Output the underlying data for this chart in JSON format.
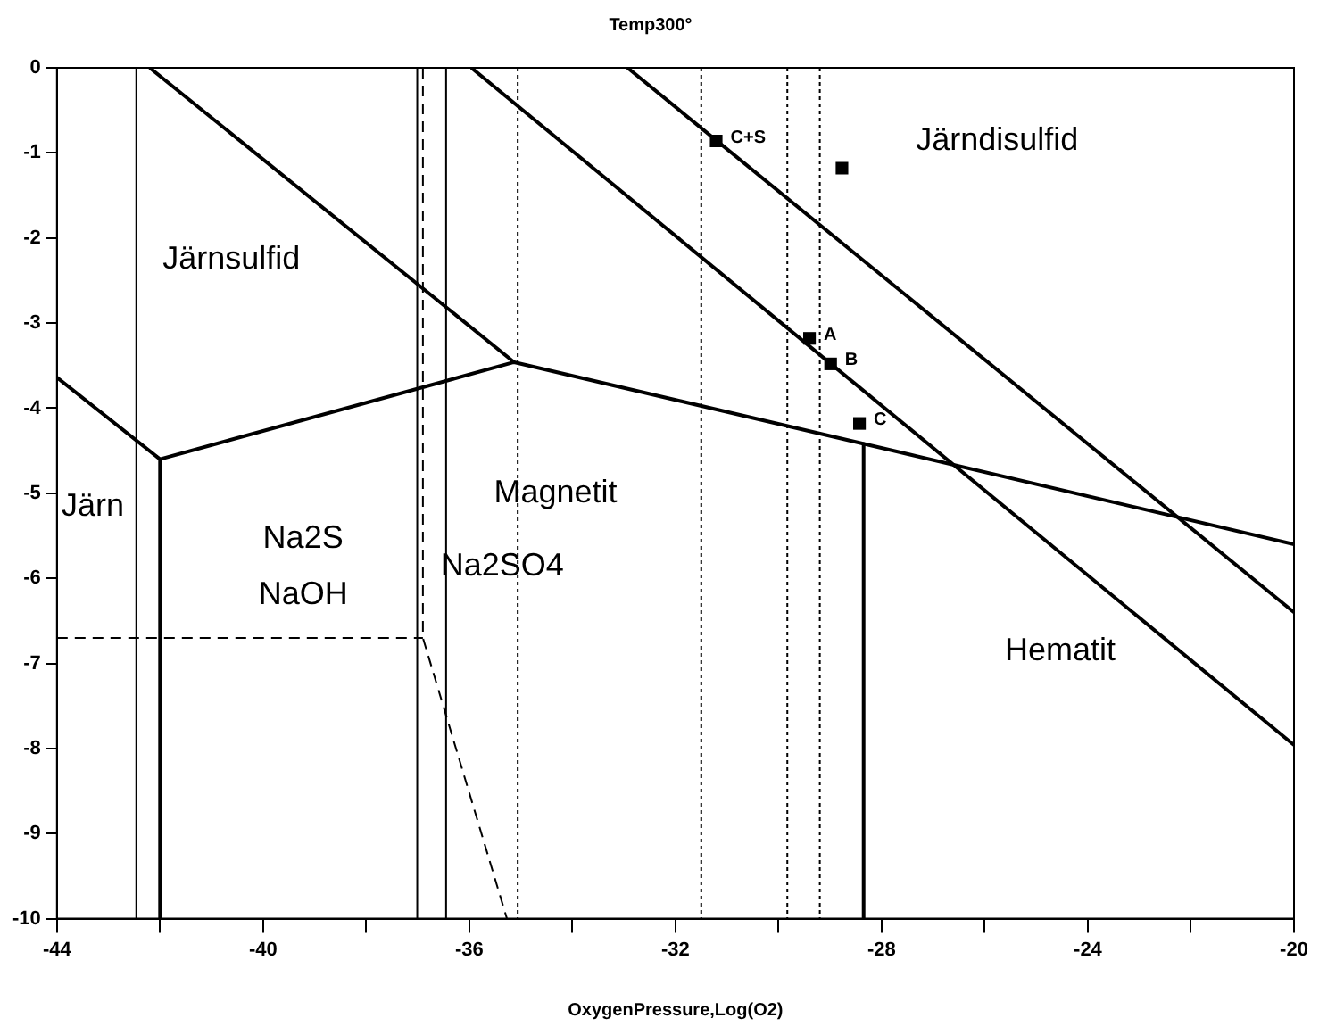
{
  "chart_data": {
    "type": "line",
    "title": "Temp300°",
    "xlabel": "OxygenPressure,Log(O2)",
    "xlim": [
      -44,
      -20
    ],
    "xticks": [
      -44,
      {
        "value": -42,
        "label": null
      },
      -40,
      {
        "value": -38,
        "label": null
      },
      -36,
      {
        "value": -34,
        "label": null
      },
      -32,
      {
        "value": -30,
        "label": null
      },
      -28,
      {
        "value": -26,
        "label": null
      },
      -24,
      {
        "value": -22,
        "label": null
      },
      -20
    ],
    "ylim": [
      -10,
      0
    ],
    "yticks": [
      0,
      -1,
      -2,
      -3,
      -4,
      -5,
      -6,
      -7,
      -8,
      -9,
      -10
    ],
    "grid": false,
    "legend": false,
    "series": [
      {
        "color": "#000000",
        "line_style": "solid",
        "marker": "none",
        "x": [
          -44,
          -42,
          -35.13,
          -20
        ],
        "values": [
          -3.64,
          -4.6,
          -3.46,
          -5.6
        ]
      },
      {
        "color": "#000000",
        "line_style": "solid",
        "marker": "none",
        "x": [
          -42.2,
          -35.13
        ],
        "values": [
          0,
          -3.46
        ]
      },
      {
        "color": "#000000",
        "line_style": "solid",
        "marker": "none",
        "x": [
          -42,
          -42
        ],
        "values": [
          -4.6,
          -10
        ]
      },
      {
        "color": "#000000",
        "line_style": "solid",
        "marker": "none",
        "x": [
          -28.35,
          -28.35
        ],
        "values": [
          -4.42,
          -10
        ]
      },
      {
        "color": "#000000",
        "line_style": "solid",
        "marker": "none",
        "x": [
          -35.96,
          -20
        ],
        "values": [
          0,
          -7.96
        ]
      },
      {
        "color": "#000000",
        "line_style": "solid",
        "marker": "none",
        "x": [
          -32.93,
          -20
        ],
        "values": [
          0,
          -6.4
        ]
      },
      {
        "color": "#000000",
        "line_style": "dashed",
        "marker": "none",
        "x": [
          -44,
          -36.9
        ],
        "values": [
          -6.7,
          -6.7
        ]
      },
      {
        "color": "#000000",
        "line_style": "dashed",
        "marker": "none",
        "x": [
          -36.9,
          -36.9,
          -35.27
        ],
        "values": [
          0,
          -6.7,
          -10
        ]
      },
      {
        "type": "scatter",
        "color": "#000000",
        "marker": "square",
        "x": [
          -31.21,
          -28.77,
          -29.4,
          -28.99,
          -28.43
        ],
        "values": [
          -0.86,
          -1.18,
          -3.18,
          -3.48,
          -4.18
        ],
        "value_labels": [
          "C+S",
          null,
          "A",
          "B",
          "C"
        ]
      }
    ],
    "ref_lines": [
      {
        "axis": "x",
        "value": -42.46,
        "line_style": "solid",
        "color": "#000000"
      },
      {
        "axis": "x",
        "value": -37.01,
        "line_style": "solid",
        "color": "#000000"
      },
      {
        "axis": "x",
        "value": -36.45,
        "line_style": "solid",
        "color": "#000000"
      },
      {
        "axis": "x",
        "value": -35.06,
        "line_style": "dotted",
        "color": "#000000"
      },
      {
        "axis": "x",
        "value": -31.5,
        "line_style": "dotted",
        "color": "#000000"
      },
      {
        "axis": "x",
        "value": -29.83,
        "line_style": "dotted",
        "color": "#000000"
      },
      {
        "axis": "x",
        "value": -29.2,
        "line_style": "dotted",
        "color": "#000000"
      }
    ],
    "annotations": [
      "Järnsulfid",
      "Järndisulfid",
      "Järn",
      "Na2S",
      "NaOH",
      "Na2SO4",
      "Magnetit",
      "Hematit"
    ]
  }
}
